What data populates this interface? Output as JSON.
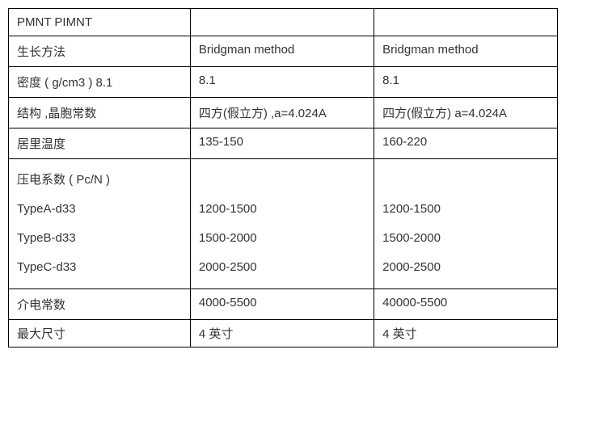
{
  "table": {
    "border_color": "#000000",
    "background_color": "#ffffff",
    "text_color": "#333333",
    "font_size": 15,
    "rows": [
      {
        "c1": "PMNT  PIMNT",
        "c2": "",
        "c3": ""
      },
      {
        "c1": "生长方法",
        "c2": "Bridgman method",
        "c3": " Bridgman method"
      },
      {
        "c1": "密度 ( g/cm3 )   8.1",
        "c2": " 8.1",
        "c3": " 8.1"
      },
      {
        "c1": "结构 ,晶胞常数",
        "c2": "四方(假立方) ,a=4.024A",
        "c3": "四方(假立方)  a=4.024A"
      },
      {
        "c1": "居里温度",
        "c2": "   135-150",
        "c3": " 160-220"
      },
      {
        "c1_lines": [
          "压电系数 ( Pc/N )",
          "TypeA-d33",
          "TypeB-d33",
          "TypeC-d33"
        ],
        "c2_lines": [
          "",
          "1200-1500",
          "1500-2000",
          "2000-2500"
        ],
        "c3_lines": [
          "",
          "1200-1500",
          "1500-2000",
          "2000-2500"
        ]
      },
      {
        "c1": "介电常数",
        "c2": "4000-5500",
        "c3": "40000-5500"
      },
      {
        "c1": "最大尺寸",
        "c2": "4 英寸",
        "c3": " 4 英寸"
      }
    ]
  }
}
